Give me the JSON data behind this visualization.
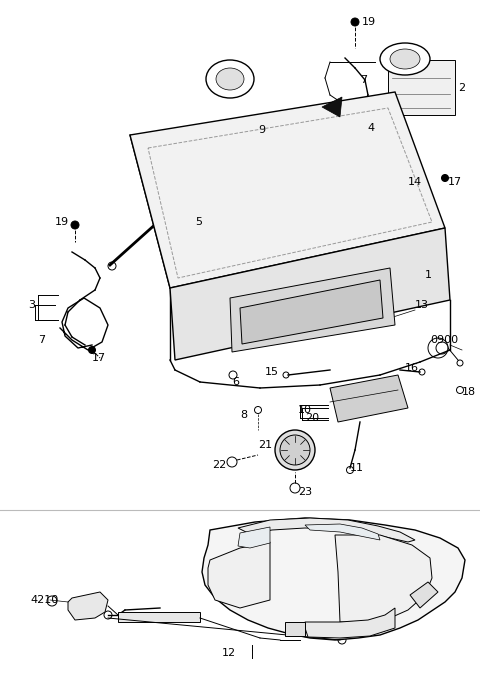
{
  "bg_color": "#ffffff",
  "line_color": "#000000",
  "fig_width": 4.8,
  "fig_height": 6.97,
  "dpi": 100
}
